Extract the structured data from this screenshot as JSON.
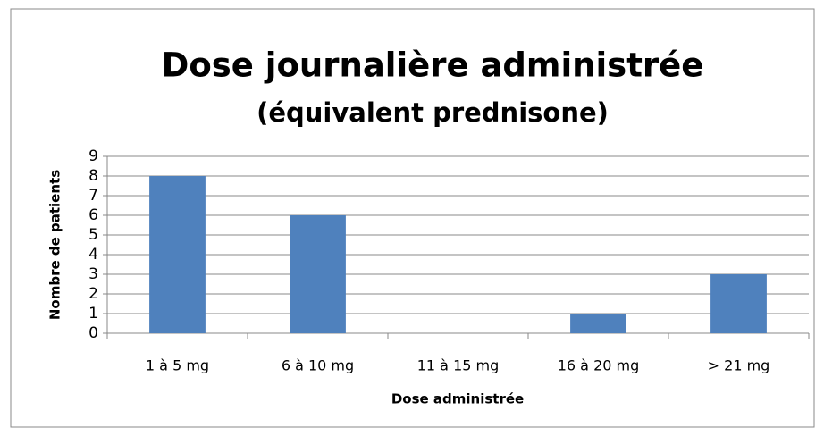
{
  "chart_data": {
    "type": "bar",
    "title": "Dose journalière administrée",
    "subtitle": "(équivalent prednisone)",
    "categories": [
      "1 à 5 mg",
      "6 à 10 mg",
      "11 à 15 mg",
      "16 à 20 mg",
      "> 21 mg"
    ],
    "values": [
      8,
      6,
      0,
      1,
      3
    ],
    "color": "#4f81bd",
    "x_label": "Dose administrée",
    "y_label": "Nombre de patients",
    "ylim": [
      0,
      9
    ],
    "yticks": [
      0,
      1,
      2,
      3,
      4,
      5,
      6,
      7,
      8,
      9
    ],
    "grid": true
  }
}
